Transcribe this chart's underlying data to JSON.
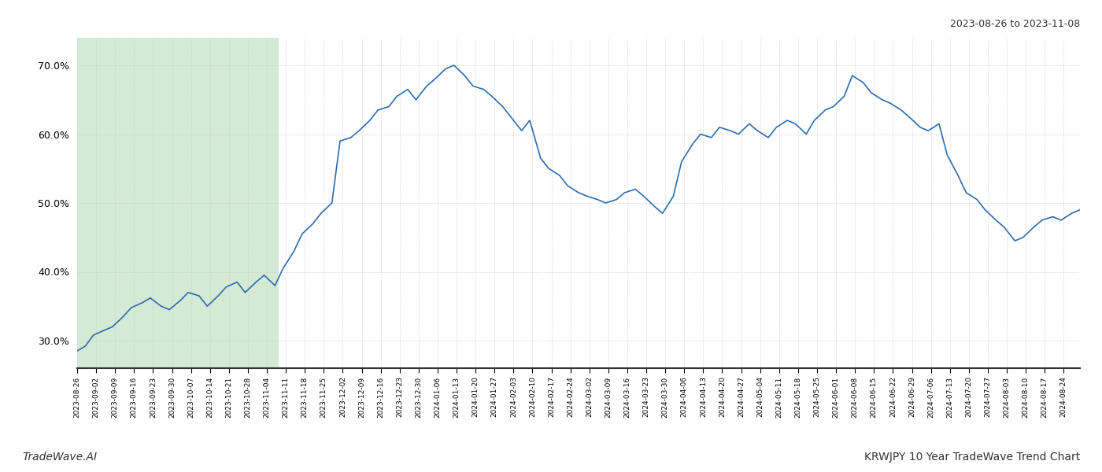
{
  "title_top_right": "2023-08-26 to 2023-11-08",
  "title_bottom_left": "TradeWave.AI",
  "title_bottom_right": "KRWJPY 10 Year TradeWave Trend Chart",
  "highlight_start": "2023-08-26",
  "highlight_end": "2023-11-08",
  "highlight_color": "#d4ead4",
  "line_color": "#2b6cb0",
  "background_color": "#ffffff",
  "grid_color": "#cccccc",
  "y_ticks": [
    30.0,
    40.0,
    50.0,
    60.0,
    70.0
  ],
  "y_min": 26.0,
  "y_max": 74.0,
  "dates": [
    "2023-08-26",
    "2023-08-29",
    "2023-09-01",
    "2023-09-05",
    "2023-09-08",
    "2023-09-12",
    "2023-09-15",
    "2023-09-19",
    "2023-09-22",
    "2023-09-26",
    "2023-09-29",
    "2023-10-03",
    "2023-10-06",
    "2023-10-10",
    "2023-10-13",
    "2023-10-17",
    "2023-10-20",
    "2023-10-24",
    "2023-10-27",
    "2023-10-31",
    "2023-11-03",
    "2023-11-07",
    "2023-11-10",
    "2023-11-14",
    "2023-11-17",
    "2023-11-21",
    "2023-11-24",
    "2023-11-28",
    "2023-12-01",
    "2023-12-05",
    "2023-12-08",
    "2023-12-12",
    "2023-12-15",
    "2023-12-19",
    "2023-12-22",
    "2023-12-26",
    "2023-12-29",
    "2024-01-02",
    "2024-01-05",
    "2024-01-09",
    "2024-01-12",
    "2024-01-16",
    "2024-01-19",
    "2024-01-23",
    "2024-01-26",
    "2024-01-30",
    "2024-02-02",
    "2024-02-06",
    "2024-02-09",
    "2024-02-13",
    "2024-02-16",
    "2024-02-20",
    "2024-02-23",
    "2024-02-27",
    "2024-03-01",
    "2024-03-05",
    "2024-03-08",
    "2024-03-12",
    "2024-03-15",
    "2024-03-19",
    "2024-03-22",
    "2024-03-26",
    "2024-03-29",
    "2024-04-02",
    "2024-04-05",
    "2024-04-09",
    "2024-04-12",
    "2024-04-16",
    "2024-04-19",
    "2024-04-23",
    "2024-04-26",
    "2024-04-30",
    "2024-05-03",
    "2024-05-07",
    "2024-05-10",
    "2024-05-14",
    "2024-05-17",
    "2024-05-21",
    "2024-05-24",
    "2024-05-28",
    "2024-05-31",
    "2024-06-04",
    "2024-06-07",
    "2024-06-11",
    "2024-06-14",
    "2024-06-18",
    "2024-06-21",
    "2024-06-25",
    "2024-06-28",
    "2024-07-02",
    "2024-07-05",
    "2024-07-09",
    "2024-07-12",
    "2024-07-16",
    "2024-07-19",
    "2024-07-23",
    "2024-07-26",
    "2024-07-30",
    "2024-08-02",
    "2024-08-06",
    "2024-08-09",
    "2024-08-13",
    "2024-08-16",
    "2024-08-20",
    "2024-08-23",
    "2024-08-27",
    "2024-08-30"
  ],
  "values": [
    28.5,
    29.2,
    30.8,
    31.5,
    32.0,
    33.5,
    34.8,
    35.5,
    36.2,
    35.0,
    34.5,
    35.8,
    37.0,
    36.5,
    35.0,
    36.5,
    37.8,
    38.5,
    37.0,
    38.5,
    39.5,
    38.0,
    40.5,
    43.0,
    45.5,
    47.0,
    48.5,
    50.0,
    59.0,
    59.5,
    60.5,
    62.0,
    63.5,
    64.0,
    65.5,
    66.5,
    65.0,
    67.0,
    68.0,
    69.5,
    70.0,
    68.5,
    67.0,
    66.5,
    65.5,
    64.0,
    62.5,
    60.5,
    62.0,
    56.5,
    55.0,
    54.0,
    52.5,
    51.5,
    51.0,
    50.5,
    50.0,
    50.5,
    51.5,
    52.0,
    51.0,
    49.5,
    48.5,
    51.0,
    56.0,
    58.5,
    60.0,
    59.5,
    61.0,
    60.5,
    60.0,
    61.5,
    60.5,
    59.5,
    61.0,
    62.0,
    61.5,
    60.0,
    62.0,
    63.5,
    64.0,
    65.5,
    68.5,
    67.5,
    66.0,
    65.0,
    64.5,
    63.5,
    62.5,
    61.0,
    60.5,
    61.5,
    57.0,
    54.0,
    51.5,
    50.5,
    49.0,
    47.5,
    46.5,
    44.5,
    45.0,
    46.5,
    47.5,
    48.0,
    47.5,
    48.5,
    49.0
  ]
}
